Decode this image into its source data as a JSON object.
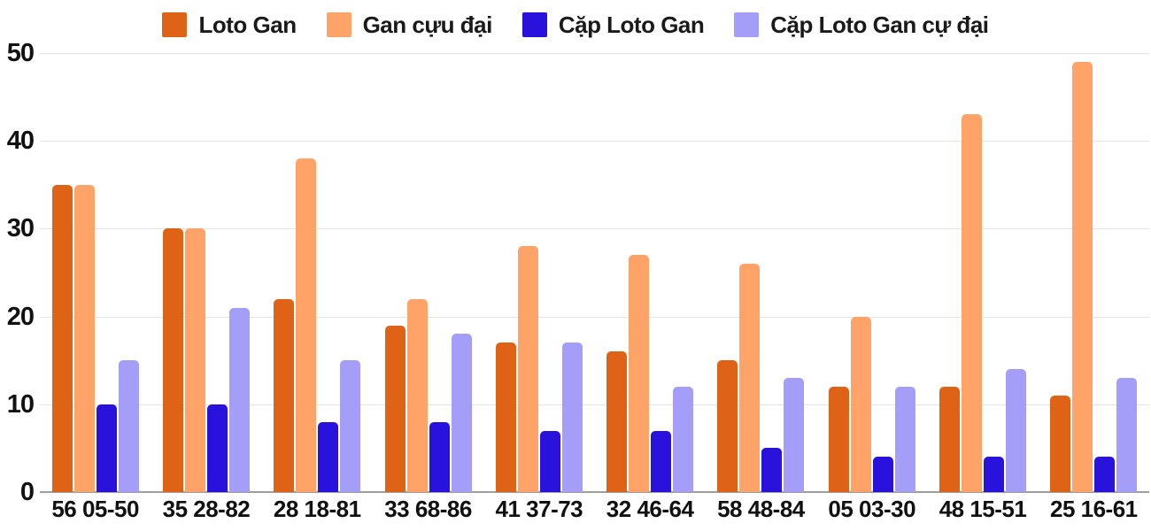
{
  "colors": {
    "background": "#ffffff",
    "text": "#111111",
    "gridline": "#e3e3e3",
    "baseline": "#9e9e9e",
    "series1": "#df6316",
    "series2": "#ffa369",
    "series3": "#2912db",
    "series4": "#a49ef8"
  },
  "chart_data": {
    "type": "bar",
    "title": "",
    "xlabel": "",
    "ylabel": "",
    "ylim": [
      0,
      50
    ],
    "yticks": [
      0,
      10,
      20,
      30,
      40,
      50
    ],
    "grid": true,
    "legend_position": "top",
    "categories": [
      "56 05-50",
      "35 28-82",
      "28 18-81",
      "33 68-86",
      "41 37-73",
      "32 46-64",
      "58 48-84",
      "05 03-30",
      "48 15-51",
      "25 16-61"
    ],
    "series": [
      {
        "name": "Loto Gan",
        "color": "#df6316",
        "values": [
          35,
          30,
          22,
          19,
          17,
          16,
          15,
          12,
          12,
          11
        ]
      },
      {
        "name": "Gan cựu đại",
        "color": "#ffa369",
        "values": [
          35,
          30,
          38,
          22,
          28,
          27,
          26,
          20,
          43,
          49
        ]
      },
      {
        "name": "Cặp Loto Gan",
        "color": "#2912db",
        "values": [
          10,
          10,
          8,
          8,
          7,
          7,
          5,
          4,
          4,
          4
        ]
      },
      {
        "name": "Cặp Loto Gan cự đại",
        "color": "#a49ef8",
        "values": [
          15,
          21,
          15,
          18,
          17,
          12,
          13,
          12,
          14,
          13
        ]
      }
    ]
  }
}
